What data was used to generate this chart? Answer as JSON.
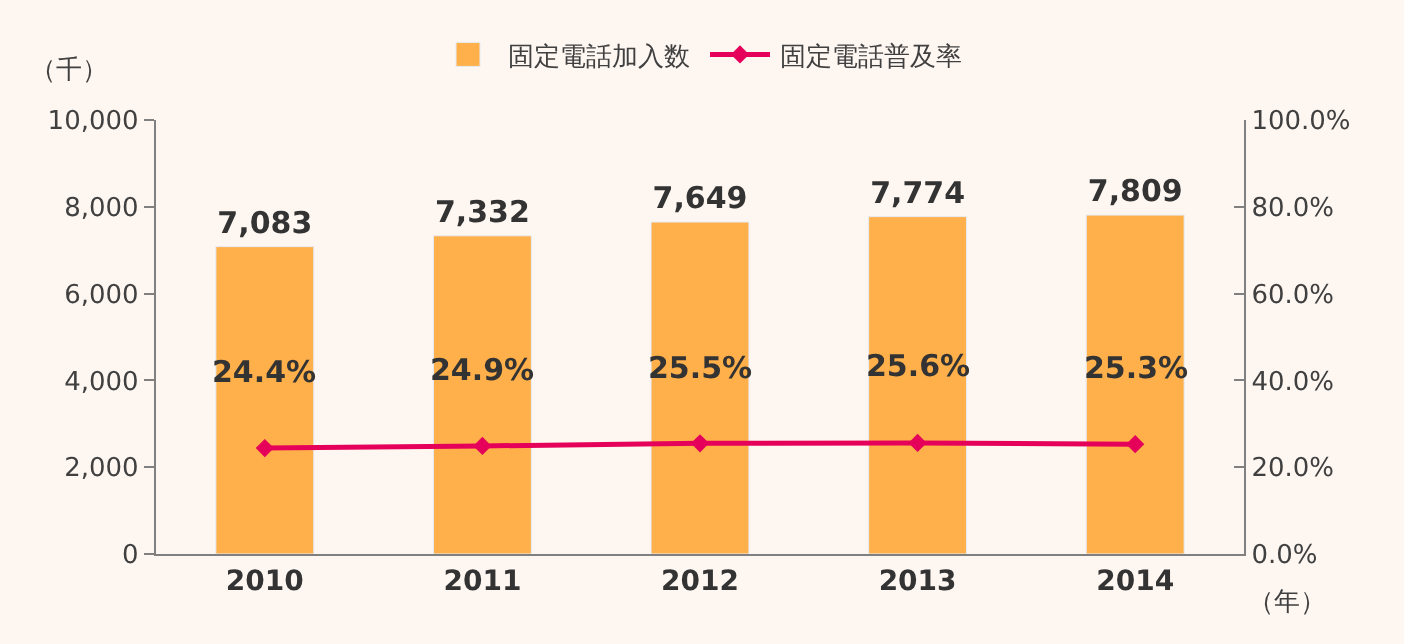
{
  "chart_data": {
    "type": "bar",
    "categories": [
      "2010",
      "2011",
      "2012",
      "2013",
      "2014"
    ],
    "series": [
      {
        "name": "固定電話加入数",
        "color": "#ffb04a",
        "values": [
          7083,
          7332,
          7649,
          7774,
          7809
        ],
        "value_labels": [
          "7,083",
          "7,332",
          "7,649",
          "7,774",
          "7,809"
        ]
      },
      {
        "name": "固定電話普及率",
        "type": "line",
        "axis": "y2",
        "color": "#e5005a",
        "marker": "diamond",
        "values": [
          24.4,
          24.9,
          25.5,
          25.6,
          25.3
        ],
        "value_labels": [
          "24.4%",
          "24.9%",
          "25.5%",
          "25.6%",
          "25.3%"
        ]
      }
    ],
    "ylabel": "（千）",
    "xlabel": "（年）",
    "ylim": [
      0,
      10000
    ],
    "yticks": [
      {
        "value": 0,
        "label": "0"
      },
      {
        "value": 2000,
        "label": "2,000"
      },
      {
        "value": 4000,
        "label": "4,000"
      },
      {
        "value": 6000,
        "label": "6,000"
      },
      {
        "value": 8000,
        "label": "8,000"
      },
      {
        "value": 10000,
        "label": "10,000"
      }
    ],
    "y2lim": [
      0,
      100
    ],
    "y2ticks": [
      {
        "value": 0,
        "label": "0.0%"
      },
      {
        "value": 20,
        "label": "20.0%"
      },
      {
        "value": 40,
        "label": "40.0%"
      },
      {
        "value": 60,
        "label": "60.0%"
      },
      {
        "value": 80,
        "label": "80.0%"
      },
      {
        "value": 100,
        "label": "100.0%"
      }
    ],
    "legend": "top",
    "grid": false
  }
}
